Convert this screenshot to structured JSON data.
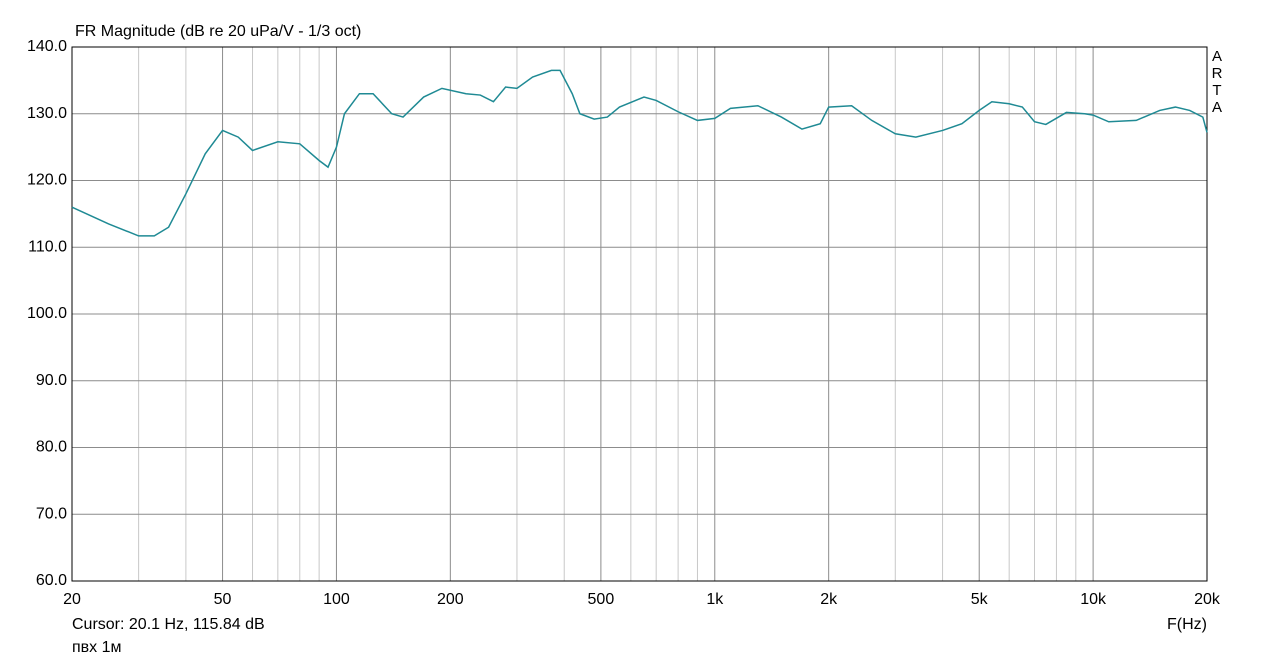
{
  "chart_data": {
    "type": "line",
    "title": "FR Magnitude (dB re 20 uPa/V - 1/3 oct)",
    "xlabel": "F(Hz)",
    "cursor": "Cursor: 20.1 Hz, 115.84 dB",
    "note": "пвх 1м",
    "watermark": "ARTA",
    "xscale": "log",
    "grid": true,
    "xlim": [
      20,
      20000
    ],
    "ylim": [
      60,
      140
    ],
    "xticks": [
      20,
      50,
      100,
      200,
      500,
      {
        "value": 1000,
        "label": "1k"
      },
      {
        "value": 2000,
        "label": "2k"
      },
      {
        "value": 5000,
        "label": "5k"
      },
      {
        "value": 10000,
        "label": "10k"
      },
      {
        "value": 20000,
        "label": "20k"
      }
    ],
    "xminor": [
      30,
      40,
      60,
      70,
      80,
      90,
      300,
      400,
      600,
      700,
      800,
      900,
      3000,
      4000,
      6000,
      7000,
      8000,
      9000
    ],
    "yticks": [
      {
        "value": 60,
        "label": "60.0"
      },
      {
        "value": 70,
        "label": "70.0"
      },
      {
        "value": 80,
        "label": "80.0"
      },
      {
        "value": 90,
        "label": "90.0"
      },
      {
        "value": 100,
        "label": "100.0"
      },
      {
        "value": 110,
        "label": "110.0"
      },
      {
        "value": 120,
        "label": "120.0"
      },
      {
        "value": 130,
        "label": "130.0"
      },
      {
        "value": 140,
        "label": "140.0"
      }
    ],
    "x": [
      20,
      25,
      30,
      33,
      36,
      40,
      45,
      50,
      55,
      60,
      70,
      80,
      90,
      95,
      100,
      105,
      115,
      125,
      140,
      150,
      170,
      190,
      220,
      240,
      260,
      280,
      300,
      330,
      370,
      390,
      420,
      440,
      480,
      520,
      560,
      650,
      700,
      800,
      900,
      1000,
      1100,
      1300,
      1500,
      1700,
      1900,
      2000,
      2300,
      2600,
      3000,
      3400,
      4000,
      4500,
      5000,
      5400,
      6000,
      6500,
      7000,
      7500,
      8500,
      9500,
      10000,
      11000,
      13000,
      15000,
      16500,
      18000,
      19500,
      20000
    ],
    "series": [
      {
        "color": "#1f8a94",
        "values": [
          116,
          113.5,
          111.7,
          111.7,
          113,
          118,
          124,
          127.5,
          126.5,
          124.5,
          125.8,
          125.5,
          123,
          122,
          125,
          130,
          133,
          133,
          130,
          129.5,
          132.5,
          133.8,
          133,
          132.8,
          131.8,
          134,
          133.8,
          135.5,
          136.5,
          136.5,
          133,
          130,
          129.2,
          129.5,
          131,
          132.5,
          132,
          130.3,
          129,
          129.3,
          130.8,
          131.2,
          129.5,
          127.7,
          128.5,
          131,
          131.2,
          129,
          127,
          126.5,
          127.5,
          128.5,
          130.5,
          131.8,
          131.5,
          131,
          128.8,
          128.4,
          130.2,
          130,
          129.8,
          128.8,
          129,
          130.5,
          131,
          130.5,
          129.5,
          127.2
        ]
      }
    ]
  }
}
